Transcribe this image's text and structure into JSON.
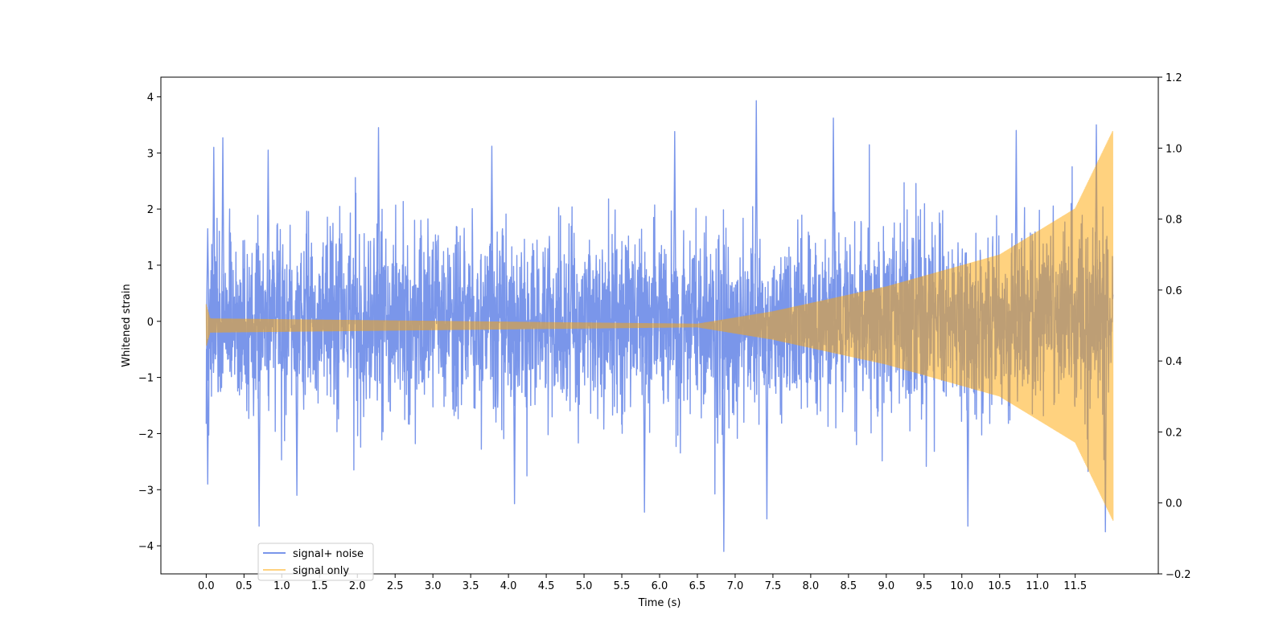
{
  "chart_data": {
    "type": "line",
    "title": "",
    "xlabel": "Time (s)",
    "ylabel": "Whitened strain",
    "y2label": "",
    "xlim": [
      -0.6,
      12.6
    ],
    "ylim": [
      -4.5,
      4.35
    ],
    "y2lim": [
      -0.2,
      1.2
    ],
    "xticks": [
      0.0,
      0.5,
      1.0,
      1.5,
      2.0,
      2.5,
      3.0,
      3.5,
      4.0,
      4.5,
      5.0,
      5.5,
      6.0,
      6.5,
      7.0,
      7.5,
      8.0,
      8.5,
      9.0,
      9.5,
      10.0,
      10.5,
      11.0,
      11.5
    ],
    "xtick_labels": [
      "0.0",
      "0.5",
      "1.0",
      "1.5",
      "2.0",
      "2.5",
      "3.0",
      "3.5",
      "4.0",
      "4.5",
      "5.0",
      "5.5",
      "6.0",
      "6.5",
      "7.0",
      "7.5",
      "8.0",
      "8.5",
      "9.0",
      "9.5",
      "10.0",
      "10.5",
      "11.0",
      "11.5"
    ],
    "yticks": [
      -4,
      -3,
      -2,
      -1,
      0,
      1,
      2,
      3,
      4
    ],
    "ytick_labels": [
      "−4",
      "−3",
      "−2",
      "−1",
      "0",
      "1",
      "2",
      "3",
      "4"
    ],
    "y2ticks": [
      -0.2,
      0.0,
      0.2,
      0.4,
      0.6,
      0.8,
      1.0,
      1.2
    ],
    "y2tick_labels": [
      "−0.2",
      "0.0",
      "0.2",
      "0.4",
      "0.6",
      "0.8",
      "1.0",
      "1.2"
    ],
    "grid": false,
    "legend_position": "lower-left",
    "series": [
      {
        "name": "signal+ noise",
        "color": "#4169e1",
        "alpha": 0.7,
        "x_range": [
          0.0,
          12.0
        ],
        "envelope_typical": [
          -1.6,
          1.6
        ],
        "extremes": [
          -4.1,
          3.95
        ],
        "peaks": [
          {
            "x": 0.02,
            "y": 1.65
          },
          {
            "x": 0.02,
            "y": -2.9
          },
          {
            "x": 0.1,
            "y": 3.1
          },
          {
            "x": 0.22,
            "y": 3.27
          },
          {
            "x": 0.7,
            "y": -3.65
          },
          {
            "x": 0.82,
            "y": 3.05
          },
          {
            "x": 1.2,
            "y": -3.1
          },
          {
            "x": 2.28,
            "y": 3.45
          },
          {
            "x": 3.78,
            "y": 3.12
          },
          {
            "x": 4.08,
            "y": -3.25
          },
          {
            "x": 5.8,
            "y": -3.4
          },
          {
            "x": 6.2,
            "y": 3.38
          },
          {
            "x": 6.85,
            "y": -4.1
          },
          {
            "x": 7.28,
            "y": 3.93
          },
          {
            "x": 7.42,
            "y": -3.52
          },
          {
            "x": 8.3,
            "y": 3.62
          },
          {
            "x": 10.08,
            "y": -3.65
          },
          {
            "x": 10.72,
            "y": 3.4
          },
          {
            "x": 11.78,
            "y": 3.5
          },
          {
            "x": 11.9,
            "y": -3.75
          }
        ]
      },
      {
        "name": "signal only",
        "color": "#ffa500",
        "alpha": 0.5,
        "x_range": [
          0.0,
          12.0
        ],
        "axis": "right",
        "amplitude_points": [
          {
            "x": 0.0,
            "y": 0.06
          },
          {
            "x": 0.05,
            "y": 0.02
          },
          {
            "x": 6.5,
            "y": 0.005
          },
          {
            "x": 7.5,
            "y": 0.04
          },
          {
            "x": 9.0,
            "y": 0.11
          },
          {
            "x": 10.5,
            "y": 0.2
          },
          {
            "x": 11.5,
            "y": 0.33
          },
          {
            "x": 12.0,
            "y": 0.55
          }
        ]
      }
    ]
  }
}
